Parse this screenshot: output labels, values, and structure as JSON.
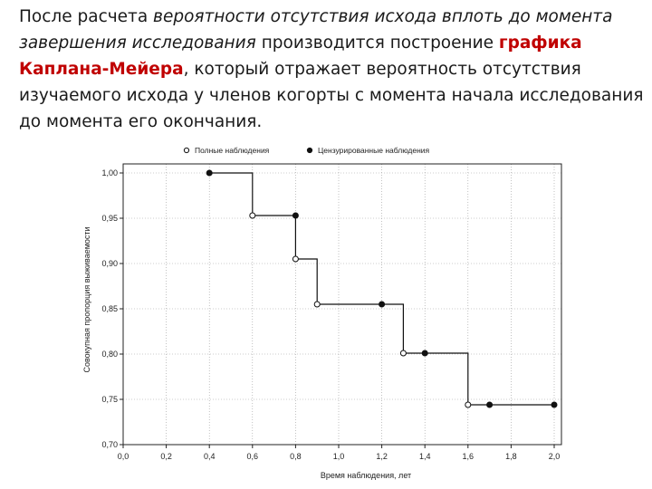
{
  "slide": {
    "p1": "После расчета ",
    "p2": "вероятности отсутствия исхода вплоть до момента завершения исследования",
    "p3": " производится построение ",
    "p4": "графика Каплана-Мейера",
    "p5": ", который отражает вероятность отсутствия изучаемого исхода у членов когорты с момента начала исследования до момента его окончания."
  },
  "chart_data": {
    "type": "line",
    "step": true,
    "xlabel": "Время наблюдения, лет",
    "ylabel": "Совокупная пропорция выживаемости",
    "xlim": [
      0.0,
      2.0
    ],
    "ylim": [
      0.7,
      1.0
    ],
    "x_ticks": [
      "0,0",
      "0,2",
      "0,4",
      "0,6",
      "0,8",
      "1,0",
      "1,2",
      "1,4",
      "1,6",
      "1,8",
      "2,0"
    ],
    "y_ticks": [
      "1,00",
      "0,95",
      "0,90",
      "0,85",
      "0,80",
      "0,75",
      "0,70"
    ],
    "grid": true,
    "legend_position": "top",
    "legend": [
      {
        "label": "Полные наблюдения",
        "marker": "open-circle"
      },
      {
        "label": "Цензурированные наблюдения",
        "marker": "filled-circle"
      }
    ],
    "curve": [
      {
        "x": 0.4,
        "y": 1.0
      },
      {
        "x": 0.6,
        "y": 1.0
      },
      {
        "x": 0.6,
        "y": 0.953
      },
      {
        "x": 0.8,
        "y": 0.953
      },
      {
        "x": 0.8,
        "y": 0.905
      },
      {
        "x": 0.9,
        "y": 0.905
      },
      {
        "x": 0.9,
        "y": 0.855
      },
      {
        "x": 1.3,
        "y": 0.855
      },
      {
        "x": 1.3,
        "y": 0.801
      },
      {
        "x": 1.6,
        "y": 0.801
      },
      {
        "x": 1.6,
        "y": 0.744
      },
      {
        "x": 2.0,
        "y": 0.744
      }
    ],
    "complete_observations": [
      {
        "x": 0.6,
        "y": 0.953
      },
      {
        "x": 0.8,
        "y": 0.905
      },
      {
        "x": 0.9,
        "y": 0.855
      },
      {
        "x": 1.3,
        "y": 0.801
      },
      {
        "x": 1.6,
        "y": 0.744
      }
    ],
    "censored_observations": [
      {
        "x": 0.4,
        "y": 1.0
      },
      {
        "x": 0.8,
        "y": 0.953
      },
      {
        "x": 1.2,
        "y": 0.855
      },
      {
        "x": 1.4,
        "y": 0.801
      },
      {
        "x": 1.7,
        "y": 0.744
      },
      {
        "x": 2.0,
        "y": 0.744
      }
    ]
  }
}
